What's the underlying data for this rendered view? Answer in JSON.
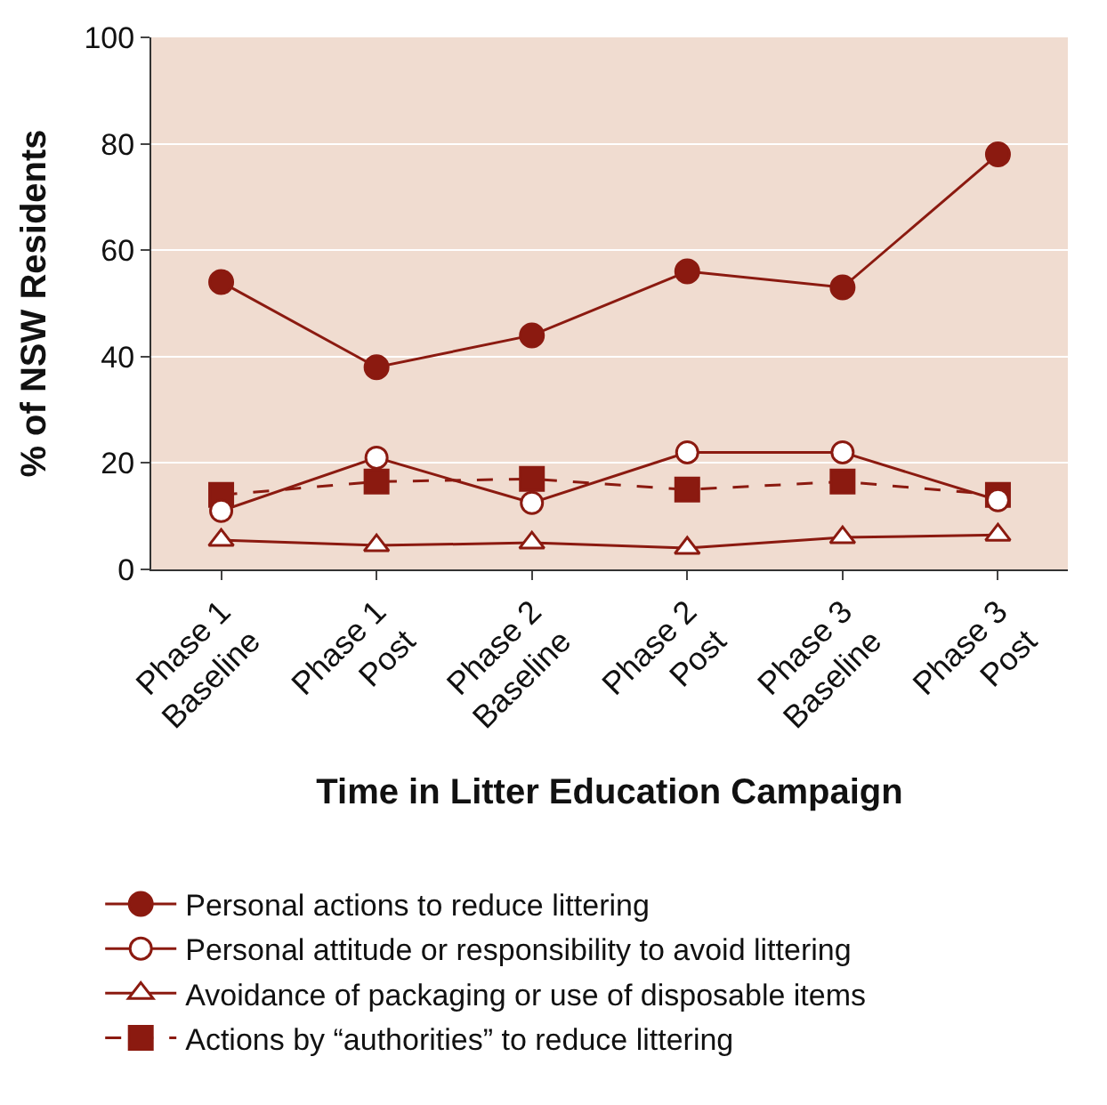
{
  "chart_data": {
    "type": "line",
    "xlabel": "Time in Litter Education Campaign",
    "ylabel": "% of NSW Residents",
    "categories": [
      "Phase 1\nBaseline",
      "Phase 1\nPost",
      "Phase 2\nBaseline",
      "Phase 2\nPost",
      "Phase 3\nBaseline",
      "Phase 3\nPost"
    ],
    "ylim": [
      0,
      100
    ],
    "yticks": [
      0,
      20,
      40,
      60,
      80,
      100
    ],
    "grid": "y",
    "legend": "bottom",
    "series": [
      {
        "name": "Personal actions to reduce littering",
        "color": "#8b1a10",
        "marker": "circle",
        "line_style": "solid",
        "values": [
          54,
          38,
          44,
          56,
          53,
          78
        ]
      },
      {
        "name": "Personal attitude or responsibility to avoid littering",
        "color": "#8b1a10",
        "marker": "circle-open",
        "line_style": "solid",
        "values": [
          11,
          21,
          12.5,
          22,
          22,
          13
        ]
      },
      {
        "name": "Avoidance of packaging or use of disposable items",
        "color": "#8b1a10",
        "marker": "triangle-open",
        "line_style": "solid",
        "values": [
          5.5,
          4.5,
          5,
          4,
          6,
          6.5
        ]
      },
      {
        "name": "Actions by “authorities” to reduce littering",
        "color": "#8b1a10",
        "marker": "square",
        "line_style": "dashed",
        "values": [
          14,
          16.5,
          17,
          15,
          16.5,
          14
        ]
      }
    ]
  }
}
